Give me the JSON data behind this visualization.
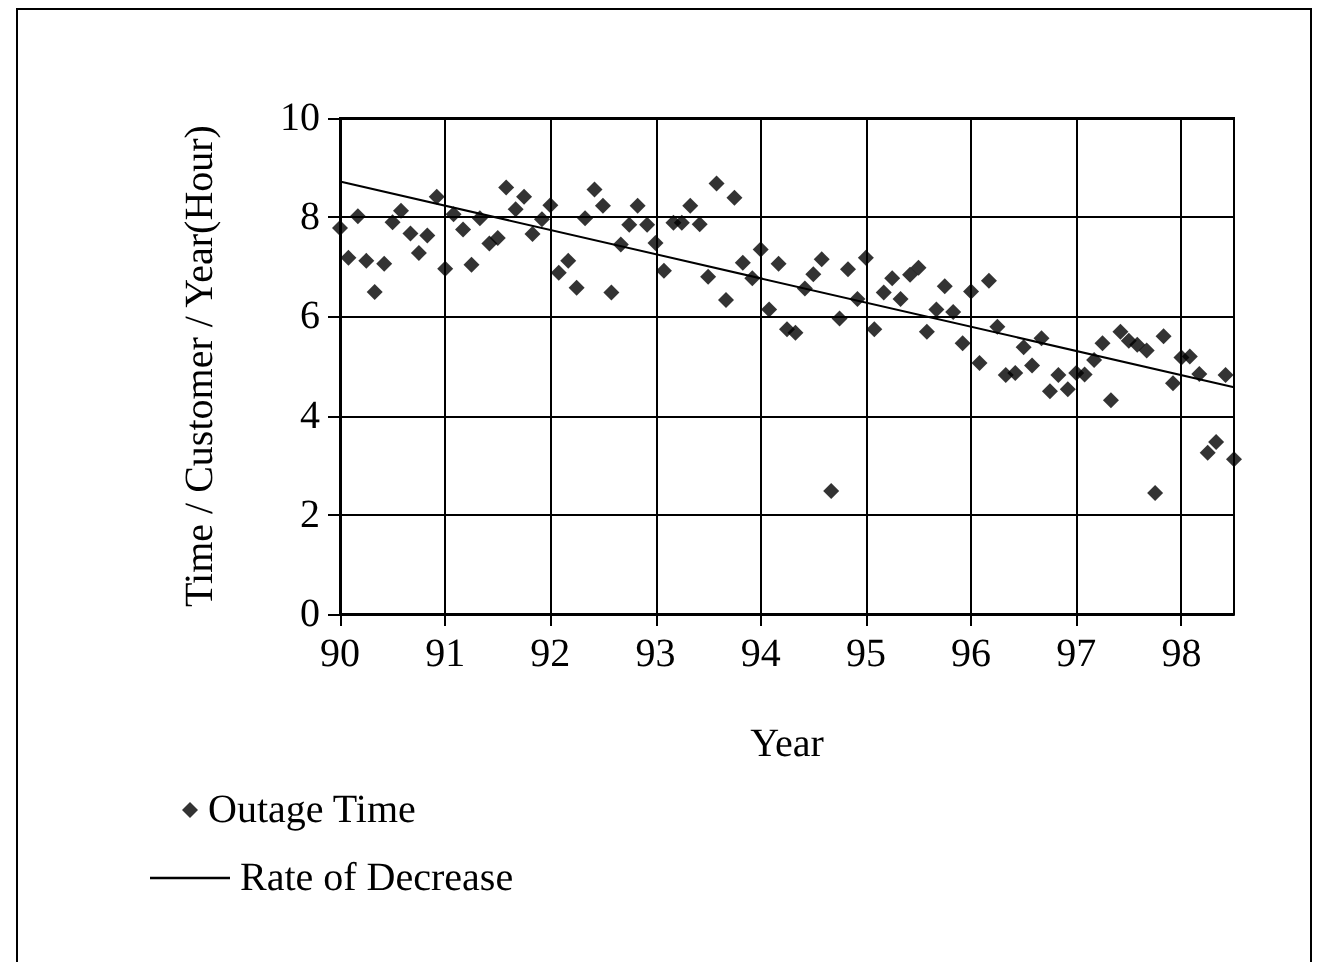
{
  "chart_data": {
    "type": "scatter",
    "xlabel": "Year",
    "ylabel": "Time / Customer / Year(Hour)",
    "xlim": [
      90,
      98.5
    ],
    "xticks": [
      90,
      91,
      92,
      93,
      94,
      95,
      96,
      97,
      98
    ],
    "ylim": [
      0,
      10
    ],
    "yticks": [
      0,
      2,
      4,
      6,
      8,
      10
    ],
    "grid": true,
    "legend": "bottom left",
    "marker": "diamond",
    "series": [
      {
        "name": "Outage Time",
        "color": "#000000",
        "x": [
          90,
          90.08,
          90.17,
          90.25,
          90.33,
          90.42,
          90.5,
          90.58,
          90.67,
          90.75,
          90.83,
          90.92,
          91,
          91.08,
          91.17,
          91.25,
          91.33,
          91.42,
          91.5,
          91.58,
          91.67,
          91.75,
          91.83,
          91.92,
          92,
          92.08,
          92.17,
          92.25,
          92.33,
          92.42,
          92.5,
          92.58,
          92.67,
          92.75,
          92.83,
          92.92,
          93,
          93.08,
          93.17,
          93.25,
          93.33,
          93.42,
          93.5,
          93.58,
          93.67,
          93.75,
          93.83,
          93.92,
          94,
          94.08,
          94.17,
          94.25,
          94.33,
          94.42,
          94.5,
          94.58,
          94.67,
          94.75,
          94.83,
          94.92,
          95,
          95.08,
          95.17,
          95.25,
          95.33,
          95.42,
          95.5,
          95.58,
          95.67,
          95.75,
          95.83,
          95.92,
          96,
          96.08,
          96.17,
          96.25,
          96.33,
          96.42,
          96.5,
          96.58,
          96.67,
          96.75,
          96.83,
          96.92,
          97,
          97.08,
          97.17,
          97.25,
          97.33,
          97.42,
          97.5,
          97.58,
          97.67,
          97.75,
          97.83,
          97.92,
          98,
          98.08,
          98.17,
          98.25,
          98.33,
          98.42,
          98.5
        ],
        "values": [
          7.78,
          7.18,
          8.02,
          7.12,
          6.49,
          7.06,
          7.9,
          8.13,
          7.67,
          7.28,
          7.63,
          8.41,
          6.96,
          8.06,
          7.75,
          7.04,
          7.98,
          7.47,
          7.58,
          8.6,
          8.16,
          8.41,
          7.66,
          7.96,
          8.24,
          6.88,
          7.12,
          6.58,
          7.98,
          8.56,
          8.23,
          6.48,
          7.45,
          7.85,
          8.23,
          7.85,
          7.48,
          6.92,
          7.89,
          7.89,
          8.23,
          7.86,
          6.8,
          8.68,
          6.33,
          8.39,
          7.08,
          6.77,
          7.35,
          6.14,
          7.06,
          5.74,
          5.67,
          6.56,
          6.85,
          7.15,
          2.48,
          5.96,
          6.95,
          6.35,
          7.18,
          5.74,
          6.48,
          6.77,
          6.35,
          6.84,
          6.98,
          5.69,
          6.14,
          6.61,
          6.09,
          5.46,
          6.5,
          5.06,
          6.72,
          5.79,
          4.82,
          4.86,
          5.38,
          5.01,
          5.56,
          4.49,
          4.82,
          4.53,
          4.86,
          4.83,
          5.12,
          5.46,
          4.31,
          5.69,
          5.51,
          5.43,
          5.31,
          2.44,
          5.6,
          4.65,
          5.17,
          5.19,
          4.84,
          3.25,
          3.47,
          4.82,
          3.12
        ]
      },
      {
        "name": "Rate of Decrease",
        "type": "line",
        "color": "#000000",
        "marker": "none",
        "line_style": "solid",
        "x": [
          90,
          98.5
        ],
        "values": [
          8.72,
          4.57
        ]
      }
    ]
  }
}
